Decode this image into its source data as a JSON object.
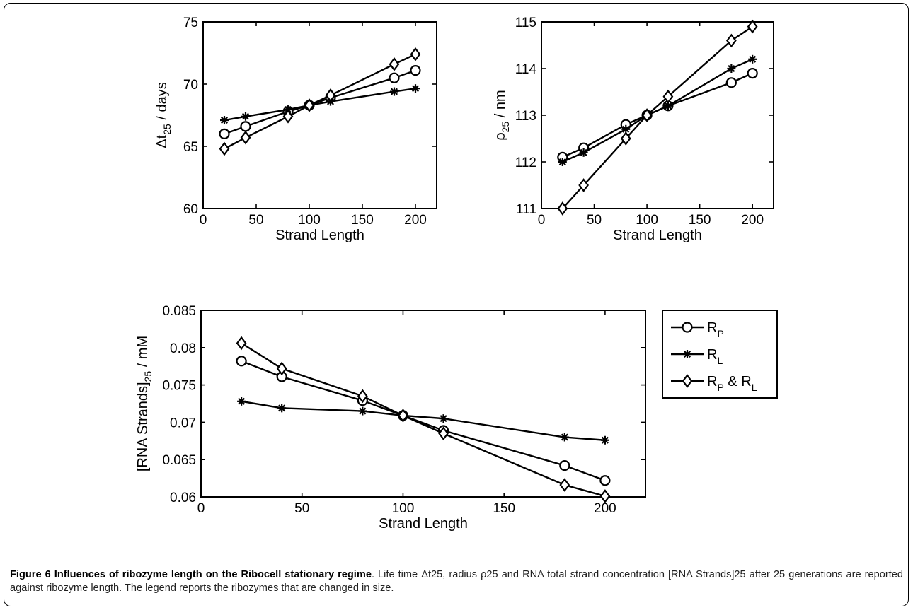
{
  "charts": [
    {
      "type": "line",
      "xlabel": "Strand Length",
      "ylabel_main": "Δt",
      "ylabel_sub": "25",
      "ylabel_rest": " / days",
      "xlim": [
        0,
        220
      ],
      "ylim": [
        60,
        75
      ],
      "xticks": [
        0,
        50,
        100,
        150,
        200
      ],
      "yticks": [
        60,
        65,
        70,
        75
      ],
      "series": [
        {
          "marker": "circle",
          "x": [
            20,
            40,
            80,
            100,
            120,
            180,
            200
          ],
          "y": [
            66.0,
            66.6,
            67.8,
            68.3,
            68.9,
            70.5,
            71.1
          ]
        },
        {
          "marker": "star",
          "x": [
            20,
            40,
            80,
            100,
            120,
            180,
            200
          ],
          "y": [
            67.1,
            67.4,
            67.95,
            68.3,
            68.6,
            69.4,
            69.65
          ]
        },
        {
          "marker": "diamond",
          "x": [
            20,
            40,
            80,
            100,
            120,
            180,
            200
          ],
          "y": [
            64.8,
            65.7,
            67.4,
            68.3,
            69.1,
            71.6,
            72.4
          ]
        }
      ]
    },
    {
      "type": "line",
      "xlabel": "Strand Length",
      "ylabel_main": "ρ",
      "ylabel_sub": "25",
      "ylabel_rest": " / nm",
      "xlim": [
        0,
        220
      ],
      "ylim": [
        111,
        115
      ],
      "xticks": [
        0,
        50,
        100,
        150,
        200
      ],
      "yticks": [
        111,
        112,
        113,
        114,
        115
      ],
      "series": [
        {
          "marker": "circle",
          "x": [
            20,
            40,
            80,
            100,
            120,
            180,
            200
          ],
          "y": [
            112.1,
            112.3,
            112.8,
            113.0,
            113.2,
            113.7,
            113.9
          ]
        },
        {
          "marker": "star",
          "x": [
            20,
            40,
            80,
            100,
            120,
            180,
            200
          ],
          "y": [
            112.0,
            112.2,
            112.7,
            113.0,
            113.2,
            114.0,
            114.2
          ]
        },
        {
          "marker": "diamond",
          "x": [
            20,
            40,
            80,
            100,
            120,
            180,
            200
          ],
          "y": [
            111.0,
            111.5,
            112.5,
            113.0,
            113.4,
            114.6,
            114.9
          ]
        }
      ]
    },
    {
      "type": "line",
      "xlabel": "Strand Length",
      "ylabel_main": "[RNA Strands]",
      "ylabel_sub": "25",
      "ylabel_rest": " / mM",
      "xlim": [
        0,
        220
      ],
      "ylim": [
        0.06,
        0.085
      ],
      "xticks": [
        0,
        50,
        100,
        150,
        200
      ],
      "yticks": [
        0.06,
        0.065,
        0.07,
        0.075,
        0.08,
        0.085
      ],
      "ytick_labels": [
        "0.06",
        "0.065",
        "0.07",
        "0.075",
        "0.08",
        "0.085"
      ],
      "series": [
        {
          "marker": "circle",
          "x": [
            20,
            40,
            80,
            100,
            120,
            180,
            200
          ],
          "y": [
            0.0782,
            0.0761,
            0.0729,
            0.0709,
            0.0689,
            0.0642,
            0.0622
          ]
        },
        {
          "marker": "star",
          "x": [
            20,
            40,
            80,
            100,
            120,
            180,
            200
          ],
          "y": [
            0.0728,
            0.0719,
            0.0715,
            0.0709,
            0.0705,
            0.068,
            0.0676
          ]
        },
        {
          "marker": "diamond",
          "x": [
            20,
            40,
            80,
            100,
            120,
            180,
            200
          ],
          "y": [
            0.0806,
            0.0772,
            0.0735,
            0.0709,
            0.0685,
            0.0616,
            0.0601
          ]
        }
      ]
    }
  ],
  "legend": {
    "position": "right of bottom chart",
    "entries": [
      {
        "marker": "circle",
        "text": "R",
        "sub": "P",
        "text2": "",
        "sub2": ""
      },
      {
        "marker": "star",
        "text": "R",
        "sub": "L",
        "text2": "",
        "sub2": ""
      },
      {
        "marker": "diamond",
        "text": "R",
        "sub": "P",
        "text2": " & R",
        "sub2": "L"
      }
    ]
  },
  "caption": {
    "title": "Figure 6 Influences of ribozyme length on the Ribocell stationary regime",
    "body": ". Life time Δt25, radius ρ25 and RNA total strand concentration [RNA Strands]25 after 25 generations are reported against ribozyme length. The legend reports the ribozymes that are changed in size."
  }
}
